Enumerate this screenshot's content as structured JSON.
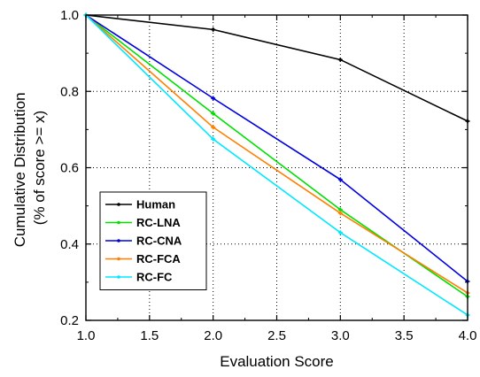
{
  "chart_data": {
    "type": "line",
    "title": "",
    "xlabel": "Evaluation Score",
    "ylabel_lines": [
      "Cumulative Distribution",
      "(% of score >= x)"
    ],
    "xlim": [
      1.0,
      4.0
    ],
    "ylim": [
      0.2,
      1.0
    ],
    "xticks": [
      1.0,
      1.5,
      2.0,
      2.5,
      3.0,
      3.5,
      4.0
    ],
    "yticks": [
      0.2,
      0.4,
      0.6,
      0.8,
      1.0
    ],
    "xtick_labels": [
      "1.0",
      "1.5",
      "2.0",
      "2.5",
      "3.0",
      "3.5",
      "4.0"
    ],
    "ytick_labels": [
      "0.2",
      "0.4",
      "0.6",
      "0.8",
      "1.0"
    ],
    "grid": true,
    "legend_position": "lower-left",
    "x": [
      1,
      2,
      3,
      4
    ],
    "series": [
      {
        "name": "Human",
        "color": "#000000",
        "values": [
          1.0,
          0.962,
          0.883,
          0.722
        ]
      },
      {
        "name": "RC-LNA",
        "color": "#00e000",
        "values": [
          1.0,
          0.742,
          0.49,
          0.262
        ]
      },
      {
        "name": "RC-CNA",
        "color": "#0000e0",
        "values": [
          1.0,
          0.782,
          0.569,
          0.302
        ]
      },
      {
        "name": "RC-FCA",
        "color": "#ff7f00",
        "values": [
          1.0,
          0.706,
          0.481,
          0.272
        ]
      },
      {
        "name": "RC-FC",
        "color": "#00e8ff",
        "values": [
          1.0,
          0.675,
          0.43,
          0.214
        ]
      }
    ]
  }
}
